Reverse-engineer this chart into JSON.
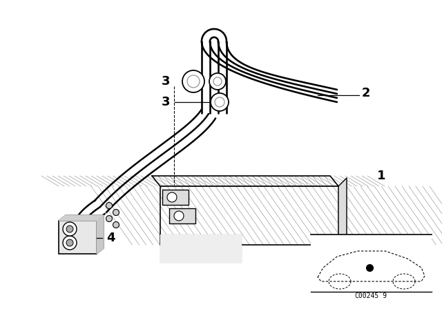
{
  "bg_color": "#ffffff",
  "lc": "#000000",
  "fig_width": 6.4,
  "fig_height": 4.48,
  "dpi": 100,
  "part_code": "C00245´9"
}
